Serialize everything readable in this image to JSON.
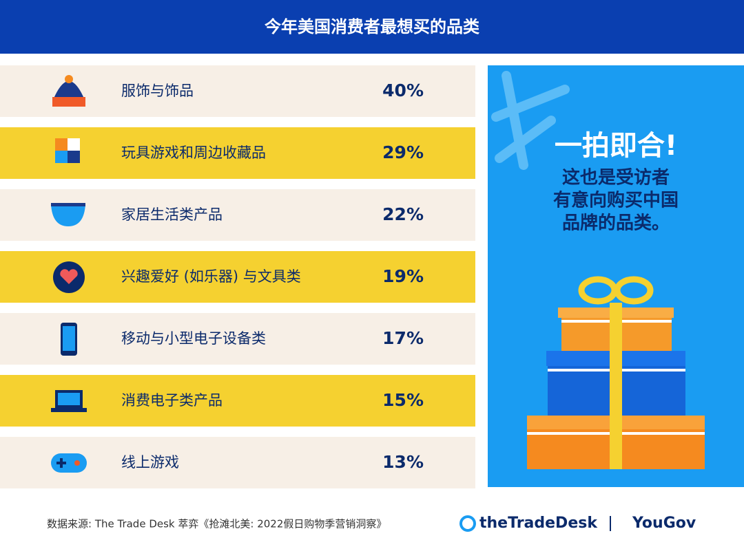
{
  "header": {
    "title": "今年美国消费者最想买的品类"
  },
  "rows": [
    {
      "label": "服饰与饰品",
      "value": "40%"
    },
    {
      "label": "玩具游戏和周边收藏品",
      "value": "29%"
    },
    {
      "label": "家居生活类产品",
      "value": "22%"
    },
    {
      "label": "兴趣爱好 (如乐器) 与文具类",
      "value": "19%"
    },
    {
      "label": "移动与小型电子设备类",
      "value": "17%"
    },
    {
      "label": "消费电子类产品",
      "value": "15%"
    },
    {
      "label": "线上游戏",
      "value": "13%"
    }
  ],
  "panel": {
    "headline": "一拍即合!",
    "lines": [
      "这也是受访者",
      "有意向购买中国",
      "品牌的品类。"
    ]
  },
  "footer": {
    "source": "数据来源: The Trade Desk 萃弈《抢滩北美: 2022假日购物季营销洞察》",
    "logos": [
      "theTradeDesk",
      "YouGov"
    ]
  }
}
